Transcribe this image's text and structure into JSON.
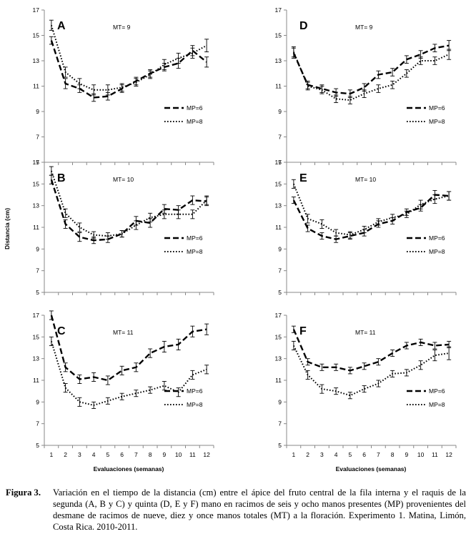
{
  "figure": {
    "ylabel": "Distancia (cm)",
    "xlabel_left": "Evaluaciones (semanas)",
    "xlabel_right": "Evaluaciones  (semanas)",
    "caption_label": "Figura 3.",
    "caption_text": "Variación en el tiempo de la distancia (cm) entre el ápice del fruto central de la fila interna y el raquis de la segunda (A, B y C) y quinta (D, E y F) mano en racimos de seis y ocho manos presentes (MP) provenientes del desmane de racimos de nueve, diez y once manos totales (MT) a la floración. Experimento 1. Matina, Limón, Costa Rica. 2010-2011."
  },
  "chart_data": [
    {
      "panel": "A",
      "annotation": "MT= 9",
      "type": "line",
      "x": [
        1,
        2,
        3,
        4,
        5,
        6,
        7,
        8,
        9,
        10,
        11,
        12
      ],
      "ylim": [
        5,
        17
      ],
      "yticks": [
        5,
        7,
        9,
        11,
        13,
        15,
        17
      ],
      "series": [
        {
          "name": "MP=6",
          "style": "dashed",
          "values": [
            14.6,
            11.2,
            10.8,
            10.1,
            10.2,
            10.8,
            11.4,
            12.0,
            12.5,
            12.8,
            13.8,
            12.9
          ],
          "err": [
            0.3,
            0.4,
            0.3,
            0.3,
            0.3,
            0.3,
            0.3,
            0.3,
            0.3,
            0.4,
            0.4,
            0.4
          ]
        },
        {
          "name": "MP=8",
          "style": "dotted",
          "values": [
            15.8,
            12.1,
            11.2,
            10.7,
            10.7,
            10.9,
            11.3,
            11.9,
            12.7,
            13.2,
            13.6,
            14.2
          ],
          "err": [
            0.4,
            0.4,
            0.4,
            0.4,
            0.4,
            0.3,
            0.3,
            0.3,
            0.4,
            0.4,
            0.4,
            0.5
          ]
        }
      ]
    },
    {
      "panel": "D",
      "annotation": "MT= 9",
      "type": "line",
      "x": [
        1,
        2,
        3,
        4,
        5,
        6,
        7,
        8,
        9,
        10,
        11,
        12
      ],
      "ylim": [
        5,
        17
      ],
      "yticks": [
        5,
        7,
        9,
        11,
        13,
        15,
        17
      ],
      "series": [
        {
          "name": "MP=6",
          "style": "dashed",
          "values": [
            13.6,
            11.1,
            10.8,
            10.5,
            10.4,
            10.9,
            11.9,
            12.1,
            13.1,
            13.5,
            14.0,
            14.2
          ],
          "err": [
            0.4,
            0.3,
            0.3,
            0.3,
            0.3,
            0.3,
            0.3,
            0.3,
            0.3,
            0.3,
            0.3,
            0.4
          ]
        },
        {
          "name": "MP=8",
          "style": "dotted",
          "values": [
            13.7,
            11.0,
            10.7,
            10.0,
            9.9,
            10.4,
            10.8,
            11.1,
            12.0,
            13.0,
            13.0,
            13.5
          ],
          "err": [
            0.4,
            0.3,
            0.3,
            0.3,
            0.3,
            0.3,
            0.3,
            0.3,
            0.3,
            0.3,
            0.3,
            0.4
          ]
        }
      ]
    },
    {
      "panel": "B",
      "annotation": "MT= 10",
      "type": "line",
      "x": [
        1,
        2,
        3,
        4,
        5,
        6,
        7,
        8,
        9,
        10,
        11,
        12
      ],
      "ylim": [
        5,
        17
      ],
      "yticks": [
        5,
        7,
        9,
        11,
        13,
        15,
        17
      ],
      "series": [
        {
          "name": "MP=6",
          "style": "dashed",
          "values": [
            15.4,
            11.3,
            10.1,
            9.8,
            9.9,
            10.4,
            11.6,
            11.4,
            12.7,
            12.6,
            13.5,
            13.4
          ],
          "err": [
            0.4,
            0.4,
            0.4,
            0.3,
            0.3,
            0.3,
            0.4,
            0.4,
            0.4,
            0.4,
            0.4,
            0.4
          ]
        },
        {
          "name": "MP=8",
          "style": "dotted",
          "values": [
            16.2,
            12.3,
            11.0,
            10.3,
            10.2,
            10.4,
            11.2,
            11.9,
            12.2,
            12.2,
            12.2,
            13.5
          ],
          "err": [
            0.4,
            0.4,
            0.4,
            0.3,
            0.3,
            0.3,
            0.4,
            0.4,
            0.4,
            0.4,
            0.4,
            0.4
          ]
        }
      ]
    },
    {
      "panel": "E",
      "annotation": "MT= 10",
      "type": "line",
      "x": [
        1,
        2,
        3,
        4,
        5,
        6,
        7,
        8,
        9,
        10,
        11,
        12
      ],
      "ylim": [
        5,
        17
      ],
      "yticks": [
        5,
        7,
        9,
        11,
        13,
        15,
        17
      ],
      "series": [
        {
          "name": "MP=6",
          "style": "dashed",
          "values": [
            13.5,
            10.9,
            10.2,
            9.9,
            10.2,
            10.5,
            11.3,
            11.6,
            12.4,
            12.8,
            14.0,
            13.9
          ],
          "err": [
            0.3,
            0.3,
            0.3,
            0.3,
            0.3,
            0.3,
            0.3,
            0.3,
            0.3,
            0.3,
            0.4,
            0.4
          ]
        },
        {
          "name": "MP=8",
          "style": "dotted",
          "values": [
            15.0,
            11.8,
            11.3,
            10.5,
            10.3,
            10.8,
            11.5,
            11.9,
            12.2,
            13.1,
            13.6,
            13.9
          ],
          "err": [
            0.4,
            0.4,
            0.4,
            0.3,
            0.3,
            0.3,
            0.3,
            0.3,
            0.3,
            0.4,
            0.4,
            0.4
          ]
        }
      ]
    },
    {
      "panel": "C",
      "annotation": "MT= 11",
      "type": "line",
      "x": [
        1,
        2,
        3,
        4,
        5,
        6,
        7,
        8,
        9,
        10,
        11,
        12
      ],
      "ylim": [
        5,
        17
      ],
      "yticks": [
        5,
        7,
        9,
        11,
        13,
        15,
        17
      ],
      "series": [
        {
          "name": "MP=6",
          "style": "dashed",
          "values": [
            17.0,
            12.2,
            11.1,
            11.3,
            11.0,
            11.9,
            12.2,
            13.5,
            14.1,
            14.3,
            15.5,
            15.7
          ],
          "err": [
            0.4,
            0.4,
            0.4,
            0.4,
            0.4,
            0.4,
            0.4,
            0.4,
            0.5,
            0.5,
            0.5,
            0.5
          ]
        },
        {
          "name": "MP=8",
          "style": "dotted",
          "values": [
            14.6,
            10.3,
            9.0,
            8.7,
            9.1,
            9.5,
            9.8,
            10.1,
            10.5,
            9.9,
            11.5,
            12.0
          ],
          "err": [
            0.4,
            0.4,
            0.4,
            0.3,
            0.3,
            0.3,
            0.3,
            0.3,
            0.4,
            0.4,
            0.4,
            0.4
          ]
        }
      ]
    },
    {
      "panel": "F",
      "annotation": "MT= 11",
      "type": "line",
      "x": [
        1,
        2,
        3,
        4,
        5,
        6,
        7,
        8,
        9,
        10,
        11,
        12
      ],
      "ylim": [
        5,
        17
      ],
      "yticks": [
        5,
        7,
        9,
        11,
        13,
        15,
        17
      ],
      "series": [
        {
          "name": "MP=6",
          "style": "dashed",
          "values": [
            15.7,
            12.7,
            12.2,
            12.2,
            11.9,
            12.3,
            12.7,
            13.5,
            14.2,
            14.5,
            14.2,
            14.3
          ],
          "err": [
            0.3,
            0.3,
            0.3,
            0.3,
            0.3,
            0.3,
            0.3,
            0.3,
            0.3,
            0.3,
            0.3,
            0.3
          ]
        },
        {
          "name": "MP=8",
          "style": "dotted",
          "values": [
            14.2,
            11.5,
            10.2,
            10.0,
            9.6,
            10.2,
            10.7,
            11.6,
            11.7,
            12.4,
            13.3,
            13.5
          ],
          "err": [
            0.4,
            0.4,
            0.4,
            0.3,
            0.3,
            0.3,
            0.3,
            0.3,
            0.3,
            0.4,
            0.5,
            0.6
          ]
        }
      ]
    }
  ]
}
